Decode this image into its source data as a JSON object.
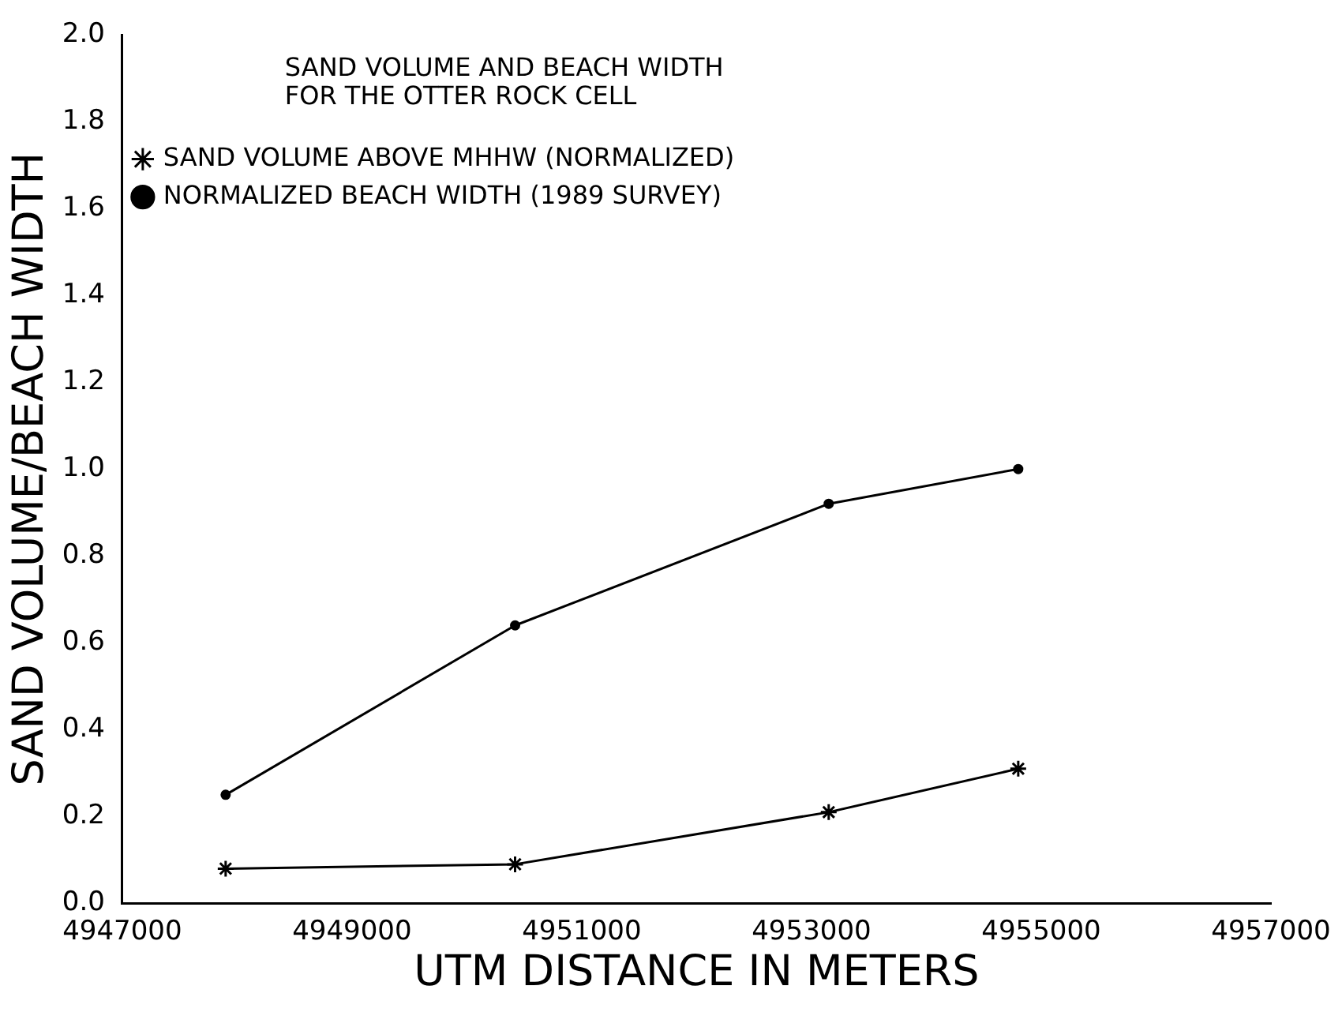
{
  "chart_data": {
    "type": "line",
    "title": "SAND VOLUME AND BEACH WIDTH\nFOR THE OTTER ROCK CELL",
    "xlabel": "UTM DISTANCE IN METERS",
    "ylabel": "SAND VOLUME/BEACH WIDTH",
    "x": [
      4947900,
      4950420,
      4953150,
      4954800
    ],
    "series": [
      {
        "name": "SAND VOLUME ABOVE MHHW (NORMALIZED)",
        "color": "#000000",
        "marker": "cross",
        "values": [
          0.08,
          0.09,
          0.21,
          0.31
        ]
      },
      {
        "name": "NORMALIZED BEACH WIDTH (1989 SURVEY)",
        "color": "#000000",
        "marker": "circle",
        "values": [
          0.25,
          0.64,
          0.92,
          1.0
        ]
      }
    ],
    "xlim": [
      4947000,
      4957000
    ],
    "xticks": [
      4947000,
      4949000,
      4951000,
      4953000,
      4955000,
      4957000
    ],
    "ylim": [
      0,
      2
    ],
    "yticks": [
      {
        "value": 0,
        "label": "0.0"
      },
      0.2,
      0.4,
      0.6,
      0.8,
      {
        "value": 1,
        "label": "1.0"
      },
      1.2,
      1.4,
      1.6,
      1.8,
      {
        "value": 2,
        "label": "2.0"
      }
    ],
    "grid": false,
    "legend": "top left",
    "line_style": "solid"
  }
}
